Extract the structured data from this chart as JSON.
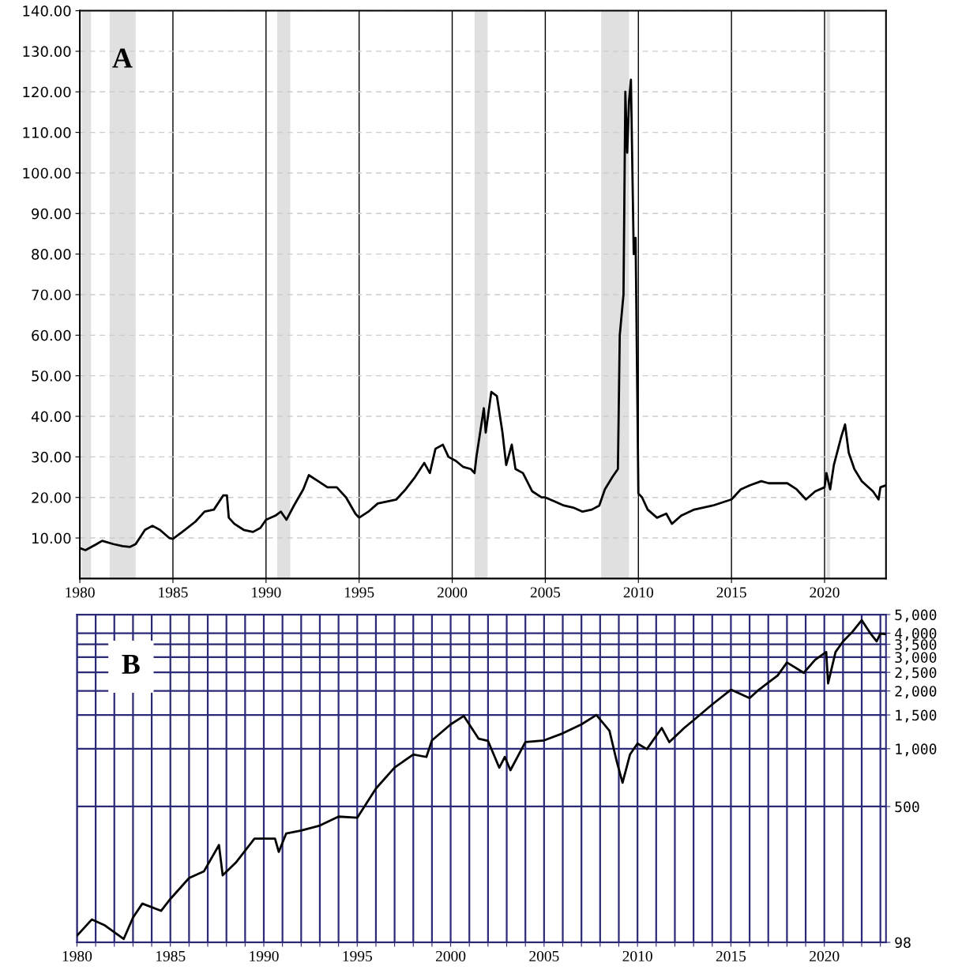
{
  "chart_data": [
    {
      "type": "line",
      "annotations": [
        "A"
      ],
      "xlim": [
        1980,
        2023.3
      ],
      "ylim": [
        0,
        140
      ],
      "xticks": [
        1980,
        1985,
        1990,
        1995,
        2000,
        2005,
        2010,
        2015,
        2020
      ],
      "yticks": [
        {
          "value": 10,
          "label": "10.00"
        },
        {
          "value": 20,
          "label": "20.00"
        },
        {
          "value": 30,
          "label": "30.00"
        },
        {
          "value": 40,
          "label": "40.00"
        },
        {
          "value": 50,
          "label": "50.00"
        },
        {
          "value": 60,
          "label": "60.00"
        },
        {
          "value": 70,
          "label": "70.00"
        },
        {
          "value": 80,
          "label": "80.00"
        },
        {
          "value": 90,
          "label": "90.00"
        },
        {
          "value": 100,
          "label": "100.00"
        },
        {
          "value": 110,
          "label": "110.00"
        },
        {
          "value": 120,
          "label": "120.00"
        },
        {
          "value": 130,
          "label": "130.00"
        },
        {
          "value": 140,
          "label": "140.00"
        }
      ],
      "grid": true,
      "bands": [
        {
          "axis": "x",
          "from": 1980.1,
          "to": 1980.6,
          "color": "#e0e0e0"
        },
        {
          "axis": "x",
          "from": 1981.6,
          "to": 1983.0,
          "color": "#e0e0e0"
        },
        {
          "axis": "x",
          "from": 1990.6,
          "to": 1991.3,
          "color": "#e0e0e0"
        },
        {
          "axis": "x",
          "from": 2001.2,
          "to": 2001.9,
          "color": "#e0e0e0"
        },
        {
          "axis": "x",
          "from": 2008.0,
          "to": 2009.5,
          "color": "#e0e0e0"
        },
        {
          "axis": "x",
          "from": 2020.1,
          "to": 2020.3,
          "color": "#e0e0e0"
        }
      ],
      "series": [
        {
          "color": "#000000",
          "x": [
            1980.0,
            1980.3,
            1980.9,
            1981.2,
            1981.8,
            1982.3,
            1982.7,
            1983.0,
            1983.5,
            1983.9,
            1984.3,
            1984.8,
            1985.0,
            1985.5,
            1986.2,
            1986.7,
            1987.2,
            1987.7,
            1987.9,
            1988.0,
            1988.3,
            1988.8,
            1989.3,
            1989.7,
            1990.0,
            1990.5,
            1990.8,
            1991.1,
            1991.5,
            1992.0,
            1992.3,
            1992.8,
            1993.3,
            1993.8,
            1994.3,
            1994.8,
            1995.0,
            1995.5,
            1996.0,
            1996.5,
            1997.0,
            1997.5,
            1998.0,
            1998.5,
            1998.8,
            1999.1,
            1999.5,
            1999.8,
            2000.2,
            2000.6,
            2001.0,
            2001.2,
            2001.3,
            2001.7,
            2001.8,
            2002.1,
            2002.4,
            2002.7,
            2002.9,
            2003.2,
            2003.4,
            2003.8,
            2004.3,
            2004.8,
            2005.0,
            2005.5,
            2006.0,
            2006.5,
            2007.0,
            2007.5,
            2007.9,
            2008.2,
            2008.6,
            2008.9,
            2009.0,
            2009.1,
            2009.2,
            2009.3,
            2009.4,
            2009.5,
            2009.6,
            2009.75,
            2009.85,
            2010.0,
            2010.2,
            2010.5,
            2011.0,
            2011.5,
            2011.8,
            2012.3,
            2013.0,
            2014.0,
            2015.0,
            2015.5,
            2016.0,
            2016.6,
            2017.0,
            2018.0,
            2018.5,
            2019.0,
            2019.5,
            2020.0,
            2020.1,
            2020.3,
            2020.5,
            2020.9,
            2021.1,
            2021.3,
            2021.6,
            2022.0,
            2022.6,
            2022.9,
            2023.0,
            2023.3
          ],
          "values": [
            7.5,
            7,
            8.5,
            9.3,
            8.5,
            8,
            7.8,
            8.5,
            12,
            13,
            12,
            10,
            9.8,
            11.5,
            14,
            16.5,
            17,
            20.5,
            20.5,
            15,
            13.5,
            12,
            11.5,
            12.5,
            14.5,
            15.5,
            16.5,
            14.5,
            18,
            22,
            25.5,
            24,
            22.5,
            22.5,
            20,
            16,
            15,
            16.5,
            18.5,
            19,
            19.5,
            22,
            25,
            28.5,
            26,
            32,
            33,
            30,
            29,
            27.5,
            27,
            26,
            30,
            42,
            36,
            46,
            45,
            36,
            28,
            33,
            27,
            26,
            21.5,
            20,
            20,
            19,
            18,
            17.5,
            16.5,
            17,
            18,
            22,
            25,
            27,
            60,
            65,
            70,
            120,
            105,
            118,
            123,
            80,
            84,
            21,
            20,
            17,
            15,
            16,
            13.5,
            15.5,
            17,
            18,
            19.5,
            22,
            23,
            24,
            23.5,
            23.5,
            22,
            19.5,
            21.5,
            22.5,
            26,
            22,
            28,
            35,
            38,
            31,
            27,
            24,
            21.5,
            19.5,
            22.5,
            23
          ]
        }
      ]
    },
    {
      "type": "line",
      "annotations": [
        "B"
      ],
      "log": true,
      "xlim": [
        1980,
        2023.3
      ],
      "ylim": [
        98,
        5000
      ],
      "xticks": [
        1980,
        {
          "value": 1981,
          "label": null
        },
        {
          "value": 1982,
          "label": null
        },
        {
          "value": 1983,
          "label": null
        },
        {
          "value": 1984,
          "label": null
        },
        1985,
        {
          "value": 1986,
          "label": null
        },
        {
          "value": 1987,
          "label": null
        },
        {
          "value": 1988,
          "label": null
        },
        {
          "value": 1989,
          "label": null
        },
        1990,
        {
          "value": 1991,
          "label": null
        },
        {
          "value": 1992,
          "label": null
        },
        {
          "value": 1993,
          "label": null
        },
        {
          "value": 1994,
          "label": null
        },
        1995,
        {
          "value": 1996,
          "label": null
        },
        {
          "value": 1997,
          "label": null
        },
        {
          "value": 1998,
          "label": null
        },
        {
          "value": 1999,
          "label": null
        },
        2000,
        {
          "value": 2001,
          "label": null
        },
        {
          "value": 2002,
          "label": null
        },
        {
          "value": 2003,
          "label": null
        },
        {
          "value": 2004,
          "label": null
        },
        2005,
        {
          "value": 2006,
          "label": null
        },
        {
          "value": 2007,
          "label": null
        },
        {
          "value": 2008,
          "label": null
        },
        {
          "value": 2009,
          "label": null
        },
        2010,
        {
          "value": 2011,
          "label": null
        },
        {
          "value": 2012,
          "label": null
        },
        {
          "value": 2013,
          "label": null
        },
        {
          "value": 2014,
          "label": null
        },
        2015,
        {
          "value": 2016,
          "label": null
        },
        {
          "value": 2017,
          "label": null
        },
        {
          "value": 2018,
          "label": null
        },
        {
          "value": 2019,
          "label": null
        },
        2020,
        {
          "value": 2021,
          "label": null
        },
        {
          "value": 2022,
          "label": null
        },
        {
          "value": 2023,
          "label": null
        }
      ],
      "yticks": [
        98,
        500,
        {
          "value": 1000,
          "label": "1,000"
        },
        {
          "value": 1500,
          "label": "1,500"
        },
        {
          "value": 2000,
          "label": "2,000"
        },
        {
          "value": 2500,
          "label": "2,500"
        },
        {
          "value": 3000,
          "label": "3,000"
        },
        {
          "value": 3500,
          "label": "3,500"
        },
        {
          "value": 4000,
          "label": "4,000"
        },
        {
          "value": 5000,
          "label": "5,000"
        }
      ],
      "grid": true,
      "series": [
        {
          "color": "#000000",
          "x": [
            1980.0,
            1980.8,
            1981.5,
            1982.5,
            1983.0,
            1983.5,
            1984.5,
            1985.0,
            1986.0,
            1986.8,
            1987.6,
            1987.8,
            1988.5,
            1989.5,
            1990.6,
            1990.8,
            1991.2,
            1992.0,
            1993.0,
            1994.0,
            1995.0,
            1996.0,
            1997.0,
            1998.0,
            1998.7,
            1999.0,
            2000.0,
            2000.7,
            2001.5,
            2002.0,
            2002.6,
            2002.9,
            2003.2,
            2004.0,
            2005.0,
            2006.0,
            2007.0,
            2007.8,
            2008.5,
            2008.9,
            2009.2,
            2009.6,
            2010.0,
            2010.5,
            2011.3,
            2011.7,
            2012.5,
            2013.0,
            2014.0,
            2015.0,
            2016.0,
            2016.5,
            2017.5,
            2018.0,
            2018.9,
            2019.5,
            2020.1,
            2020.2,
            2020.6,
            2021.0,
            2021.5,
            2022.0,
            2022.5,
            2022.8,
            2023.0,
            2023.3
          ],
          "values": [
            106,
            129,
            120,
            102,
            132,
            156,
            143,
            165,
            212,
            230,
            315,
            219,
            255,
            340,
            340,
            290,
            362,
            375,
            398,
            443,
            437,
            620,
            798,
            934,
            906,
            1105,
            1340,
            1482,
            1127,
            1098,
            797,
            906,
            773,
            1083,
            1105,
            1203,
            1340,
            1500,
            1241,
            850,
            665,
            934,
            1064,
            995,
            1283,
            1083,
            1283,
            1408,
            1702,
            2031,
            1836,
            2031,
            2407,
            2816,
            2486,
            2904,
            3193,
            2190,
            3193,
            3625,
            4064,
            4674,
            3950,
            3625,
            3977,
            3950
          ]
        }
      ]
    }
  ]
}
